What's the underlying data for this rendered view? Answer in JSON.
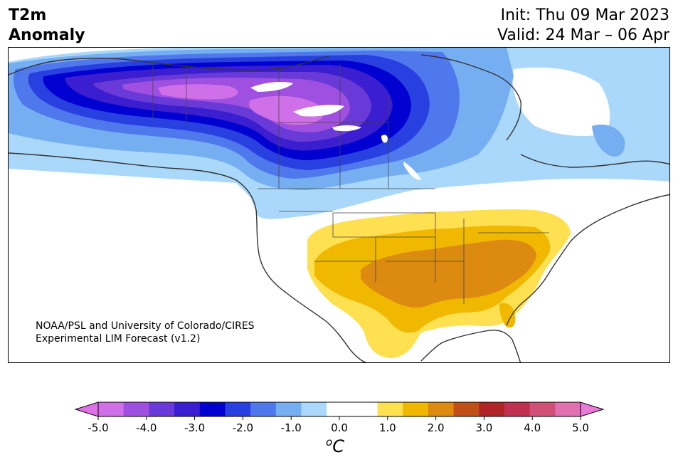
{
  "header": {
    "title_line1": "T2m",
    "title_line2": "Anomaly",
    "init": "Init: Thu 09 Mar 2023",
    "valid": "Valid: 24 Mar – 06 Apr"
  },
  "credit": {
    "line1": "NOAA/PSL and University of Colorado/CIRES",
    "line2": "Experimental LIM Forecast (v1.2)"
  },
  "colorbar": {
    "unit_base": "C",
    "unit_sup": "o",
    "ticks": [
      "-5.0",
      "-4.0",
      "-3.0",
      "-2.0",
      "-1.0",
      "0.0",
      "1.0",
      "2.0",
      "3.0",
      "4.0",
      "5.0"
    ],
    "under_color": "#e070e8",
    "over_color": "#e87ad8",
    "colors": [
      "#d070e8",
      "#a050e0",
      "#6a3ad8",
      "#3a1ed0",
      "#0000d0",
      "#2840e0",
      "#4f78ec",
      "#76aef2",
      "#aad8fa",
      "#ffffff",
      "#ffffff",
      "#ffe050",
      "#f0b800",
      "#dc8a10",
      "#c05018",
      "#b02428",
      "#c03050",
      "#d05078",
      "#e070b0"
    ]
  },
  "map": {
    "colors": {
      "light_blue": "#aad8fa",
      "blue2": "#76aef2",
      "blue3": "#4f78ec",
      "blue4": "#2840e0",
      "blue5": "#0000d0",
      "purple1": "#3a1ed0",
      "purple2": "#6a3ad8",
      "purple3": "#a050e0",
      "magenta": "#d070e8",
      "yellow": "#ffe050",
      "gold": "#f0b800",
      "orange": "#dc8a10",
      "coast": "#333333"
    }
  }
}
